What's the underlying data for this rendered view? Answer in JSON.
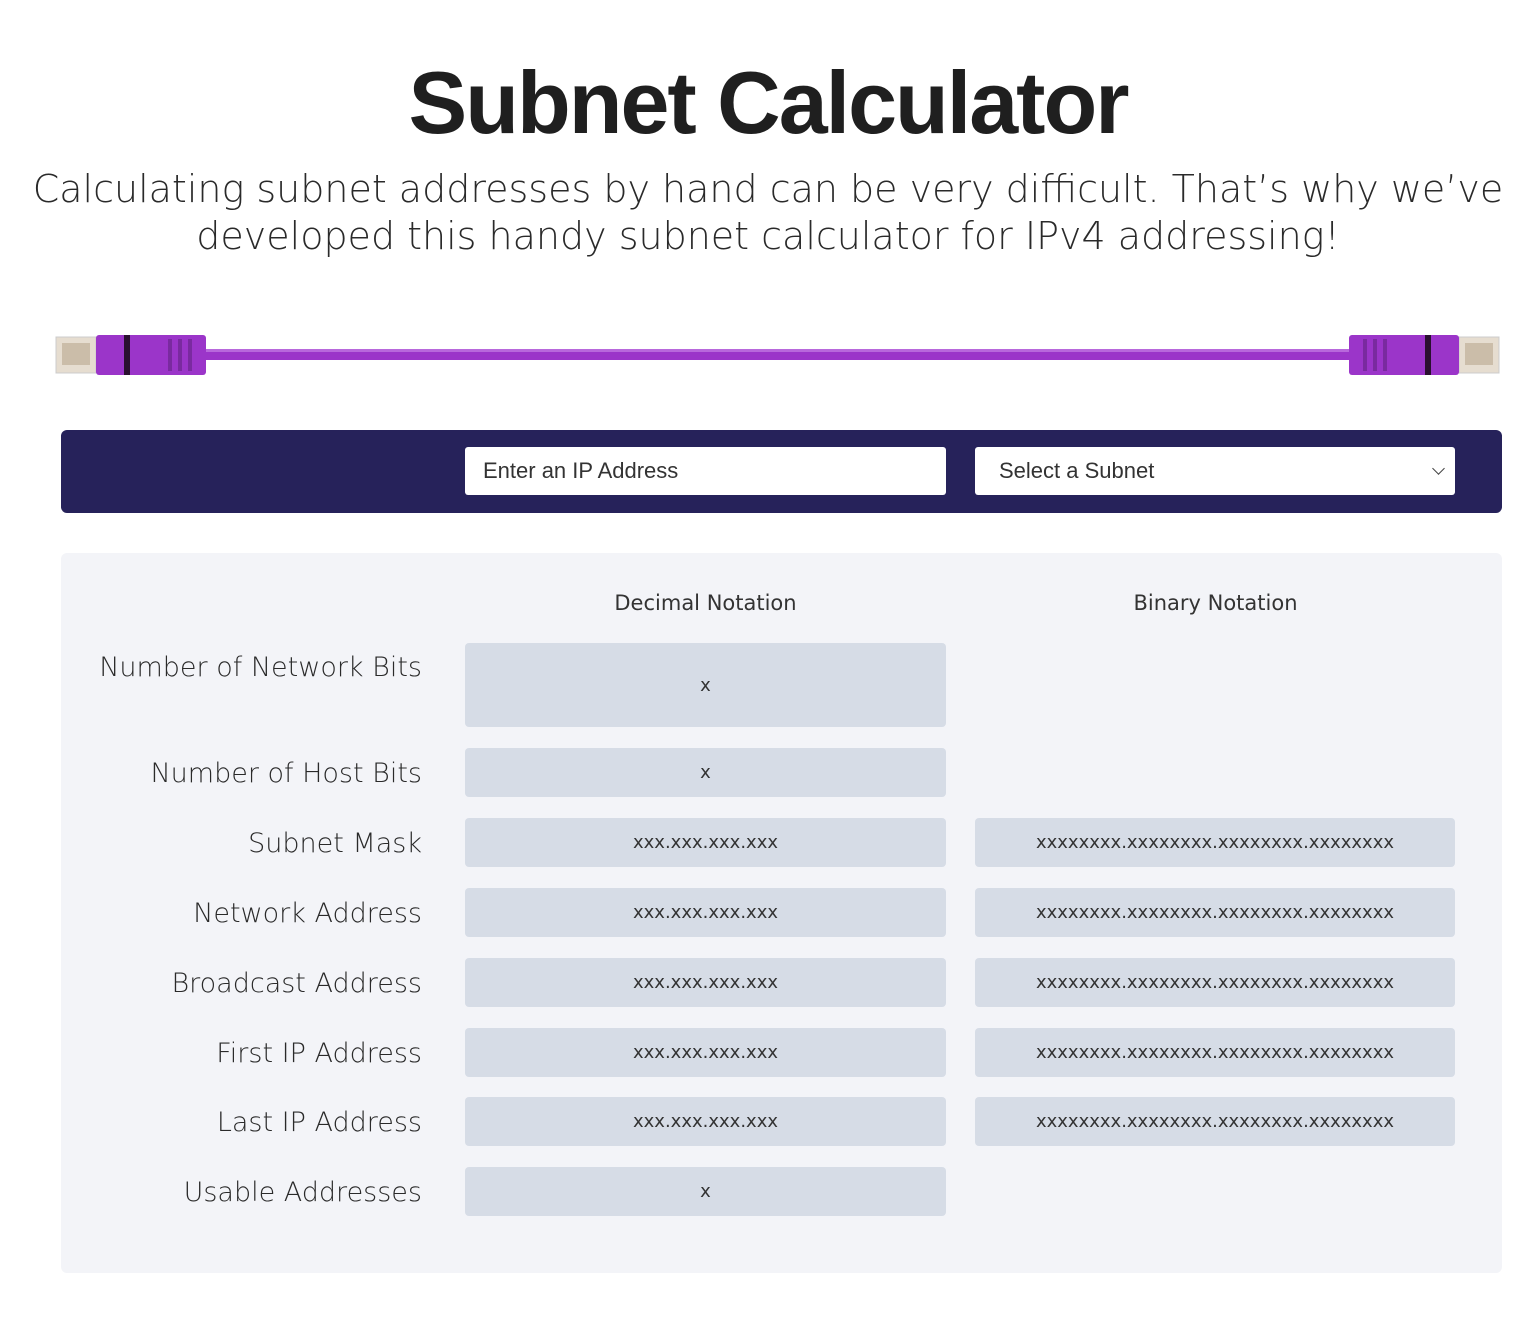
{
  "header": {
    "title": "Subnet Calculator",
    "description": "Calculating subnet addresses by hand can be very difficult. That’s why we’ve developed this handy subnet calculator for IPv4 addressing!"
  },
  "form": {
    "ip_placeholder": "Enter an IP Address",
    "subnet_select": "Select a Subnet"
  },
  "colors": {
    "bar": "#26225a",
    "panel": "#f3f4f8",
    "field": "#d6dce6",
    "cable": "#9b35c9"
  },
  "results": {
    "columns": [
      "Decimal Notation",
      "Binary Notation"
    ],
    "rows": [
      {
        "label": "Number of Network Bits",
        "decimal": "x"
      },
      {
        "label": "Number of Host Bits",
        "decimal": "x"
      },
      {
        "label": "Subnet Mask",
        "decimal": "xxx.xxx.xxx.xxx",
        "binary": "xxxxxxxx.xxxxxxxx.xxxxxxxx.xxxxxxxx"
      },
      {
        "label": "Network Address",
        "decimal": "xxx.xxx.xxx.xxx",
        "binary": "xxxxxxxx.xxxxxxxx.xxxxxxxx.xxxxxxxx"
      },
      {
        "label": "Broadcast Address",
        "decimal": "xxx.xxx.xxx.xxx",
        "binary": "xxxxxxxx.xxxxxxxx.xxxxxxxx.xxxxxxxx"
      },
      {
        "label": "First IP Address",
        "decimal": "xxx.xxx.xxx.xxx",
        "binary": "xxxxxxxx.xxxxxxxx.xxxxxxxx.xxxxxxxx"
      },
      {
        "label": "Last IP Address",
        "decimal": "xxx.xxx.xxx.xxx",
        "binary": "xxxxxxxx.xxxxxxxx.xxxxxxxx.xxxxxxxx"
      },
      {
        "label": "Usable Addresses",
        "decimal": "x"
      }
    ]
  }
}
